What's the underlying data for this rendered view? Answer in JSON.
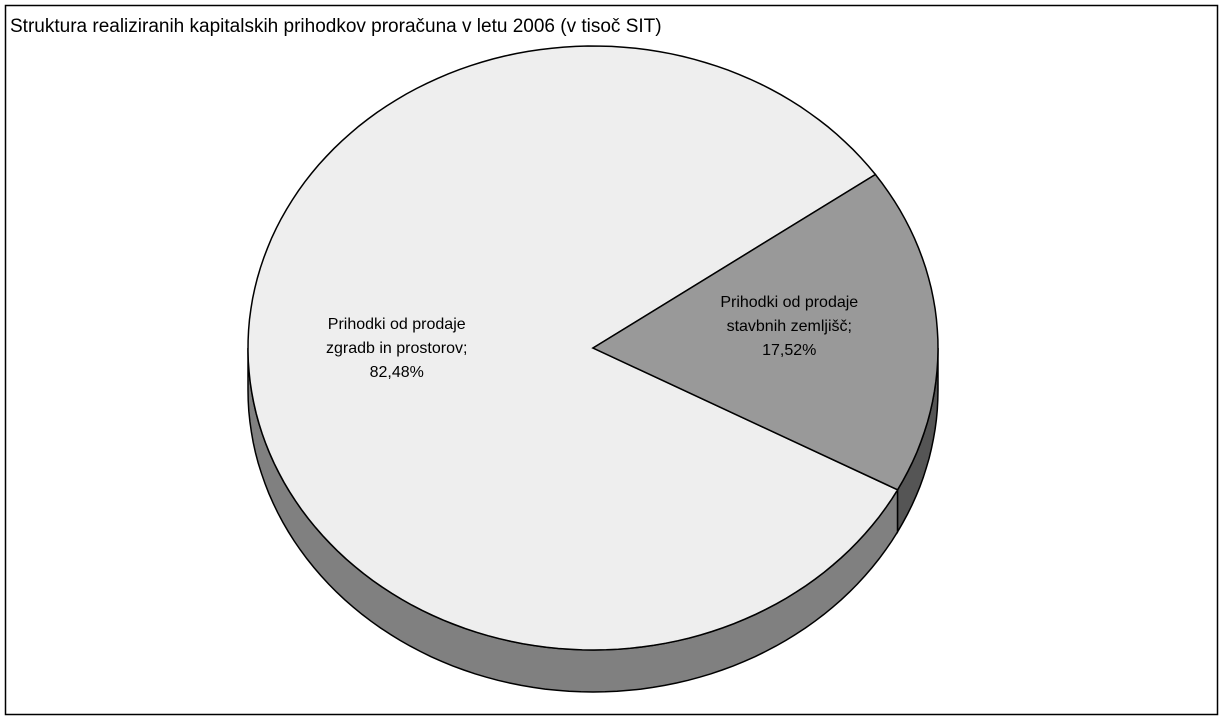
{
  "chart_data": {
    "type": "pie3d",
    "title": "Struktura realiziranih kapitalskih prihodkov proračuna v letu 2006 (v tisoč SIT)",
    "categories": [
      "Prihodki od prodaje zgradb in prostorov",
      "Prihodki od prodaje stavbnih zemljišč"
    ],
    "values": [
      82.48,
      17.52
    ],
    "value_labels": [
      "82,48%",
      "17,52%"
    ],
    "label_separator": ";",
    "colors": [
      "#eeeeee",
      "#999999"
    ],
    "side_colors": [
      "#808080",
      "#555555"
    ]
  }
}
